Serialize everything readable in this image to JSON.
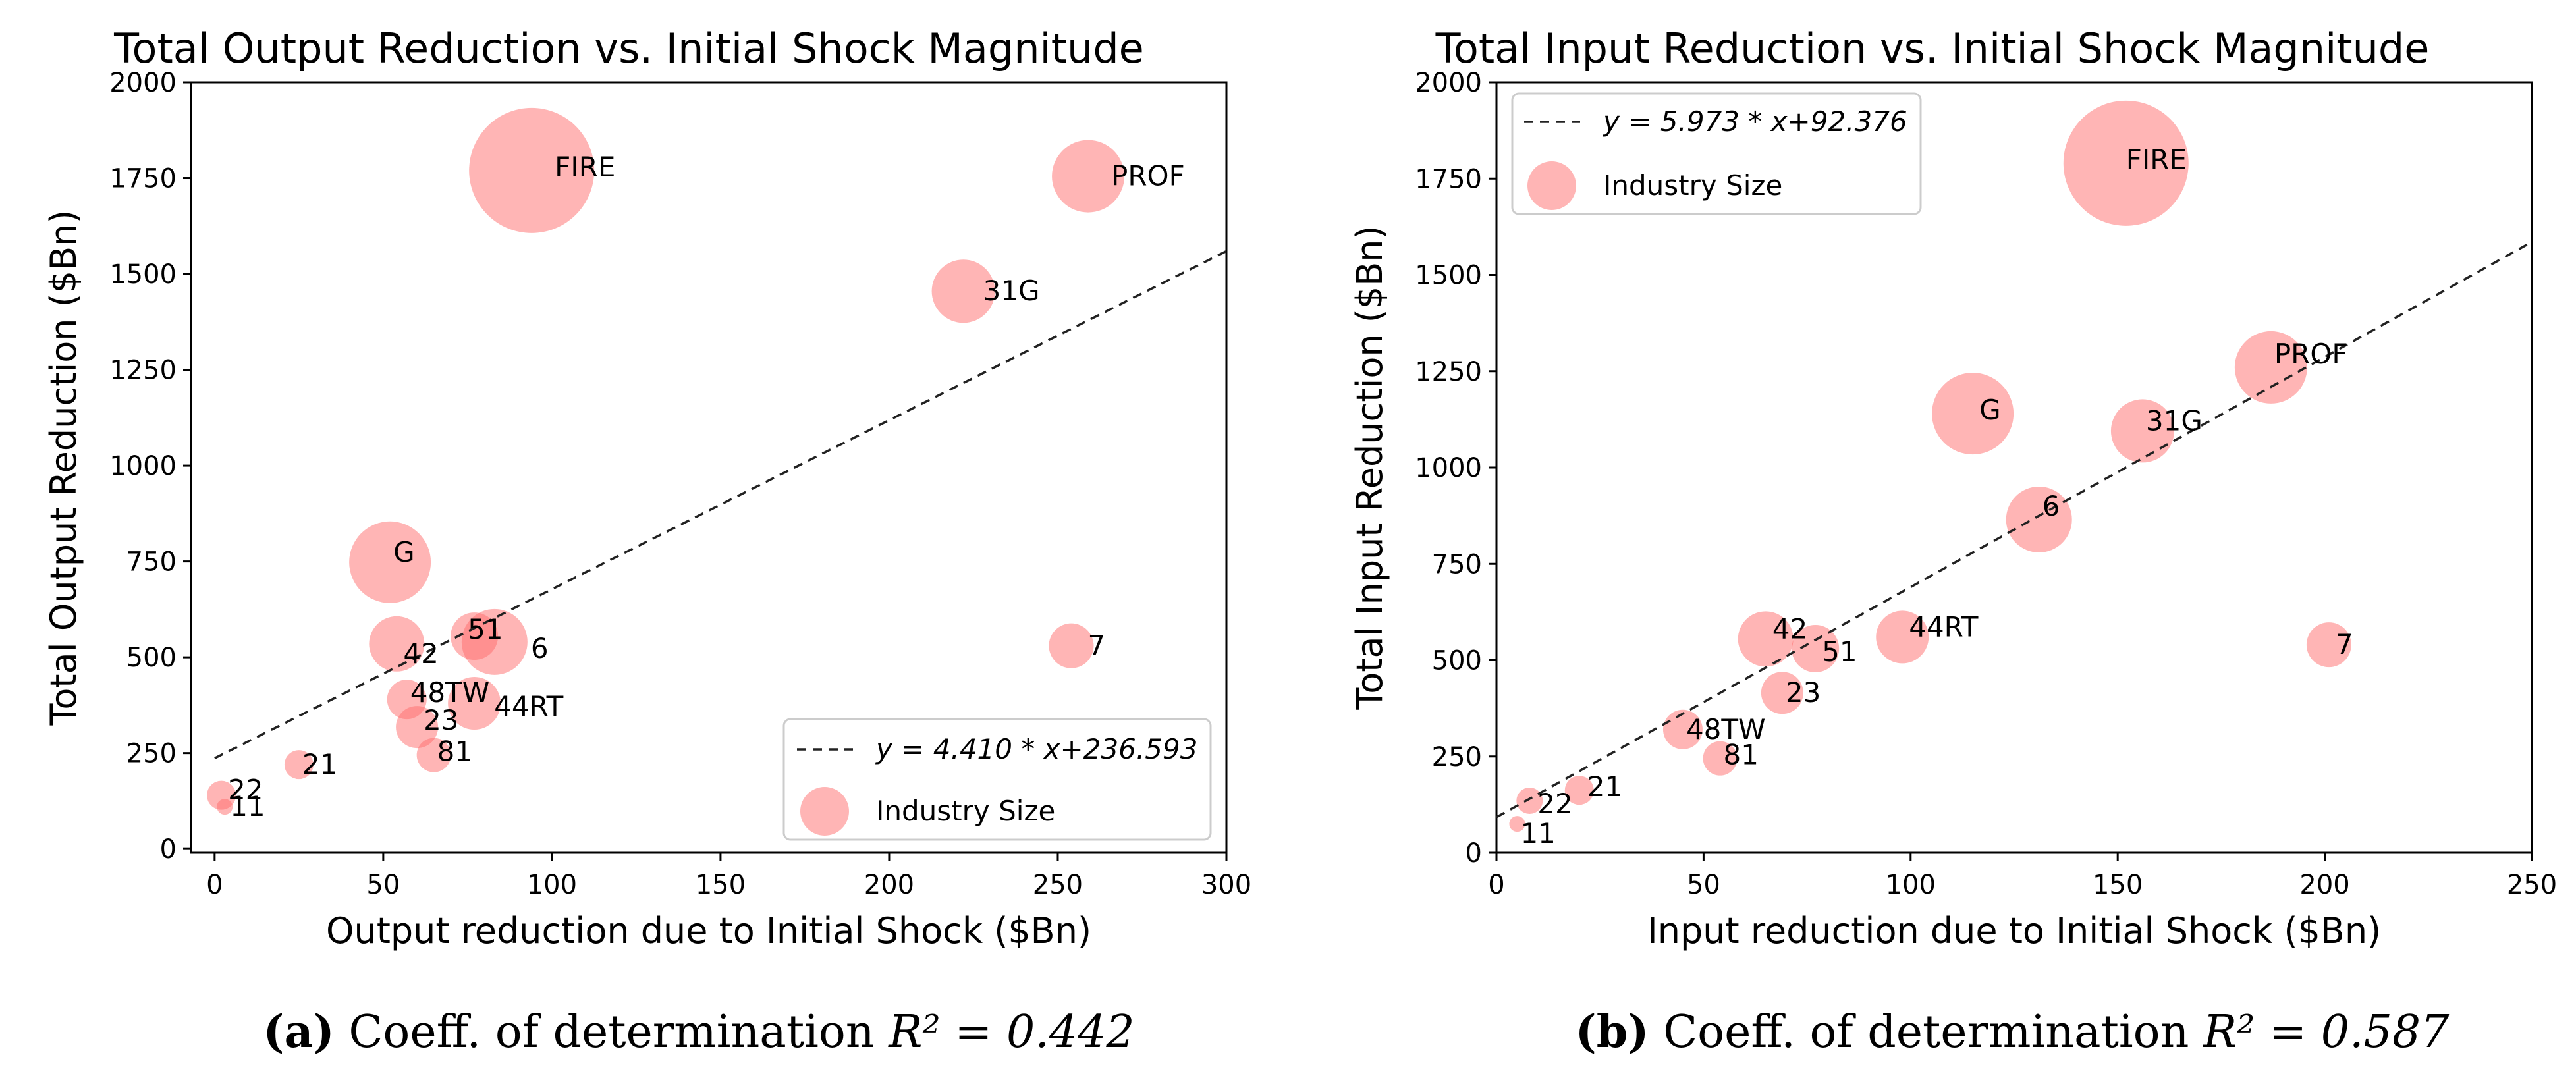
{
  "chart_data": [
    {
      "type": "scatter",
      "title": "Total Output Reduction vs. Initial Shock Magnitude",
      "xlabel": "Output reduction due to Initial Shock ($Bn)",
      "ylabel": "Total Output Reduction ($Bn)",
      "xlim": [
        -7,
        300
      ],
      "ylim": [
        -10,
        2000
      ],
      "xticks": [
        0,
        50,
        100,
        150,
        200,
        250,
        300
      ],
      "yticks": [
        0,
        250,
        500,
        750,
        1000,
        1250,
        1500,
        1750,
        2000
      ],
      "legend_position": "lower-right",
      "legend_line": "y = 4.410 * x+236.593",
      "legend_marker": "Industry Size",
      "fit": {
        "slope": 4.41,
        "intercept": 236.593
      },
      "caption_prefix": "(a)",
      "caption_text": "Coeff. of determination",
      "caption_r2": "R² = 0.442",
      "color": "#ff6b6b",
      "points": [
        {
          "label": "FIRE",
          "x": 94,
          "y": 1770,
          "size": 95
        },
        {
          "label": "PROF",
          "x": 259,
          "y": 1755,
          "size": 55
        },
        {
          "label": "31G",
          "x": 222,
          "y": 1455,
          "size": 48
        },
        {
          "label": "G",
          "x": 52,
          "y": 748,
          "size": 62
        },
        {
          "label": "42",
          "x": 54,
          "y": 535,
          "size": 42
        },
        {
          "label": "51",
          "x": 77,
          "y": 555,
          "size": 36
        },
        {
          "label": "6",
          "x": 83,
          "y": 540,
          "size": 50
        },
        {
          "label": "7",
          "x": 254,
          "y": 530,
          "size": 34
        },
        {
          "label": "48TW",
          "x": 57,
          "y": 390,
          "size": 30
        },
        {
          "label": "44RT",
          "x": 77,
          "y": 380,
          "size": 40
        },
        {
          "label": "23",
          "x": 60,
          "y": 318,
          "size": 32
        },
        {
          "label": "81",
          "x": 65,
          "y": 245,
          "size": 26
        },
        {
          "label": "21",
          "x": 25,
          "y": 220,
          "size": 22
        },
        {
          "label": "22",
          "x": 2,
          "y": 140,
          "size": 22
        },
        {
          "label": "11",
          "x": 3,
          "y": 110,
          "size": 12
        }
      ]
    },
    {
      "type": "scatter",
      "title": "Total Input Reduction vs. Initial Shock Magnitude",
      "xlabel": "Input reduction due to Initial Shock ($Bn)",
      "ylabel": "Total Input Reduction ($Bn)",
      "xlim": [
        0,
        250
      ],
      "ylim": [
        0,
        2000
      ],
      "xticks": [
        0,
        50,
        100,
        150,
        200,
        250
      ],
      "yticks": [
        0,
        250,
        500,
        750,
        1000,
        1250,
        1500,
        1750,
        2000
      ],
      "legend_position": "upper-left",
      "legend_line": "y = 5.973 * x+92.376",
      "legend_marker": "Industry Size",
      "fit": {
        "slope": 5.973,
        "intercept": 92.376
      },
      "caption_prefix": "(b)",
      "caption_text": "Coeff. of determination",
      "caption_r2": "R² = 0.587",
      "color": "#ff6b6b",
      "points": [
        {
          "label": "FIRE",
          "x": 152,
          "y": 1790,
          "size": 95
        },
        {
          "label": "PROF",
          "x": 187,
          "y": 1260,
          "size": 55
        },
        {
          "label": "G",
          "x": 115,
          "y": 1140,
          "size": 62
        },
        {
          "label": "31G",
          "x": 156,
          "y": 1095,
          "size": 48
        },
        {
          "label": "6",
          "x": 131,
          "y": 865,
          "size": 50
        },
        {
          "label": "42",
          "x": 65,
          "y": 555,
          "size": 42
        },
        {
          "label": "51",
          "x": 77,
          "y": 530,
          "size": 36
        },
        {
          "label": "44RT",
          "x": 98,
          "y": 560,
          "size": 40
        },
        {
          "label": "7",
          "x": 201,
          "y": 540,
          "size": 34
        },
        {
          "label": "23",
          "x": 69,
          "y": 415,
          "size": 32
        },
        {
          "label": "48TW",
          "x": 45,
          "y": 320,
          "size": 30
        },
        {
          "label": "81",
          "x": 54,
          "y": 245,
          "size": 26
        },
        {
          "label": "21",
          "x": 20,
          "y": 162,
          "size": 22
        },
        {
          "label": "22",
          "x": 8,
          "y": 135,
          "size": 20
        },
        {
          "label": "11",
          "x": 5,
          "y": 75,
          "size": 12
        }
      ]
    }
  ]
}
